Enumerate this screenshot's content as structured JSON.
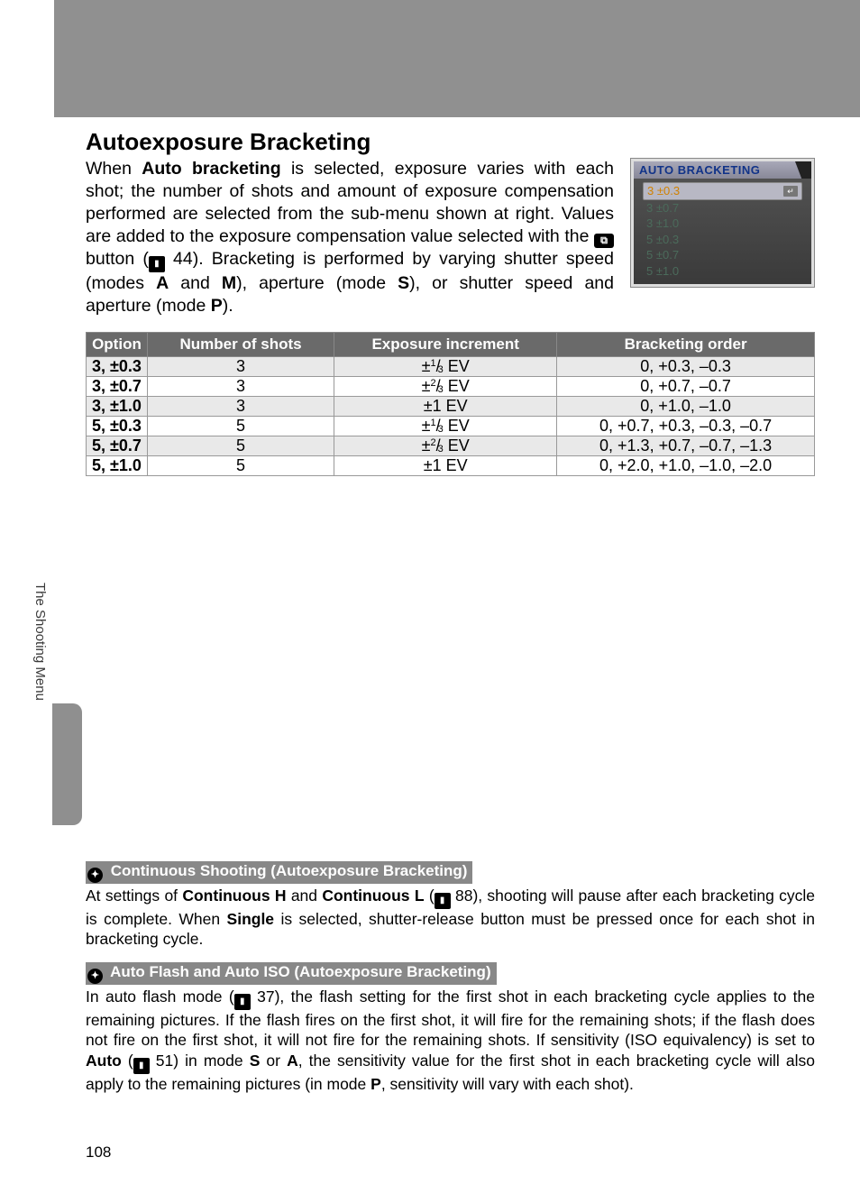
{
  "top_band_color": "#909090",
  "heading": "Autoexposure Bracketing",
  "intro_html": "When <b>Auto bracketing</b> is selected, exposure varies with each shot; the number of shots and amount of exposure compensation performed are selected from the sub-menu shown at right.  Values are added to the exposure compensation value selected with the <span class='ev-icon' data-name='ev-comp-icon' data-interactable='false'>⧉</span> button (<span class='page-icon' data-name='page-ref-icon' data-interactable='false'>▮</span> 44).   Bracketing is performed by varying shutter speed (modes <b>A</b> and <b>M</b>), aperture (mode <b>S</b>), or shutter speed and aperture (mode <b>P</b>).",
  "lcd": {
    "title": "AUTO BRACKETING",
    "items": [
      "3 ±0.3",
      "3 ±0.7",
      "3 ±1.0",
      "5 ±0.3",
      "5 ±0.7",
      "5 ±1.0"
    ],
    "selected_index": 0,
    "title_color": "#113388",
    "selected_text_color": "#d08000",
    "item_color": "#4b6b5b"
  },
  "table": {
    "headers": [
      "Option",
      "Number of shots",
      "Exposure increment",
      "Bracketing order"
    ],
    "header_bg": "#6a6a6a",
    "header_fg": "#ffffff",
    "shade_bg": "#e9e9e9",
    "rows": [
      {
        "opt": "3, ±0.3",
        "shots": "3",
        "inc": "±<span class='frac'><sup>1</sup>/<sub>3</sub></span> EV",
        "order": "0, +0.3, –0.3",
        "shade": true
      },
      {
        "opt": "3, ±0.7",
        "shots": "3",
        "inc": "±<span class='frac'><sup>2</sup>/<sub>3</sub></span> EV",
        "order": "0, +0.7, –0.7",
        "shade": false
      },
      {
        "opt": "3, ±1.0",
        "shots": "3",
        "inc": "±1 EV",
        "order": "0, +1.0, –1.0",
        "shade": true
      },
      {
        "opt": "5, ±0.3",
        "shots": "5",
        "inc": "±<span class='frac'><sup>1</sup>/<sub>3</sub></span> EV",
        "order": "0, +0.7, +0.3, –0.3, –0.7",
        "shade": false
      },
      {
        "opt": "5, ±0.7",
        "shots": "5",
        "inc": "±<span class='frac'><sup>2</sup>/<sub>3</sub></span> EV",
        "order": "0, +1.3, +0.7, –0.7, –1.3",
        "shade": true
      },
      {
        "opt": "5, ±1.0",
        "shots": "5",
        "inc": "±1 EV",
        "order": "0, +2.0, +1.0, –1.0, –2.0",
        "shade": false
      }
    ]
  },
  "side_label": "The Shooting Menu",
  "notes": [
    {
      "title": "Continuous Shooting (Autoexposure Bracketing)",
      "body_html": "At settings of <b>Continuous H</b> and <b>Continuous L</b> (<span class='page-icon' data-name='page-ref-icon' data-interactable='false'>▮</span> 88), shooting will pause after each bracketing cycle is complete.  When <b>Single</b> is selected, shutter-release button must be pressed once for each shot in bracketing cycle."
    },
    {
      "title": "Auto Flash and Auto ISO (Autoexposure Bracketing)",
      "body_html": "In auto flash mode (<span class='page-icon' data-name='page-ref-icon' data-interactable='false'>▮</span> 37), the flash setting for the first shot in each bracketing cycle applies to the remaining pictures.  If the flash fires on the first shot, it will fire for the remaining shots; if the flash does not fire on the first shot, it will not fire for the remaining shots.  If sensitivity (ISO equivalency) is set to <b>Auto</b> (<span class='page-icon' data-name='page-ref-icon' data-interactable='false'>▮</span> 51) in mode <b>S</b> or <b>A</b>, the sensitivity value for the first shot in each bracketing cycle will also apply to the remaining pictures (in mode <b>P</b>, sensitivity will vary with each shot)."
    }
  ],
  "page_number": "108"
}
